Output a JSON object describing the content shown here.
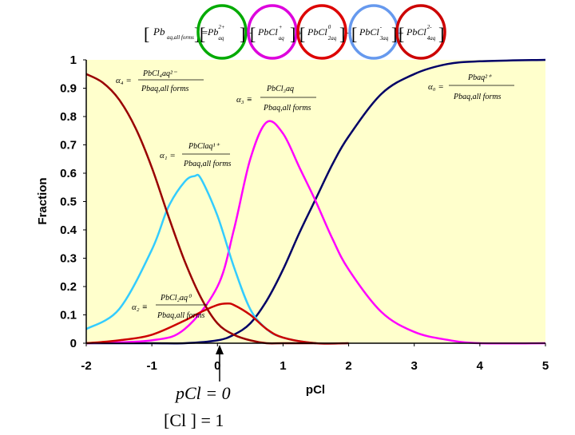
{
  "chart_data": {
    "type": "line",
    "title": "",
    "xlabel": "pCl",
    "ylabel": "Fraction",
    "xlim": [
      -2,
      5
    ],
    "ylim": [
      0,
      1
    ],
    "x_ticks": [
      "-2",
      "-1",
      "0",
      "1",
      "2",
      "3",
      "4",
      "5"
    ],
    "y_ticks": [
      "0",
      "0.1",
      "0.2",
      "0.3",
      "0.4",
      "0.5",
      "0.6",
      "0.7",
      "0.8",
      "0.9",
      "1"
    ],
    "grid": false,
    "background": "#ffffcc",
    "series": [
      {
        "color": "#000066",
        "x": [
          -2,
          -1,
          -0.5,
          0,
          0.25,
          0.5,
          0.75,
          1,
          1.25,
          1.5,
          1.75,
          2,
          2.5,
          3,
          3.5,
          4,
          5
        ],
        "values": [
          0.0,
          0.0,
          0.0,
          0.01,
          0.03,
          0.07,
          0.15,
          0.26,
          0.39,
          0.51,
          0.63,
          0.73,
          0.88,
          0.95,
          0.985,
          0.995,
          1.0
        ]
      },
      {
        "color": "#ff00ff",
        "x": [
          -2,
          -1,
          -0.5,
          0,
          0.25,
          0.5,
          0.75,
          1,
          1.25,
          1.5,
          1.75,
          2,
          2.5,
          3,
          3.5,
          4,
          5
        ],
        "values": [
          0.0,
          0.01,
          0.05,
          0.2,
          0.4,
          0.65,
          0.78,
          0.74,
          0.62,
          0.5,
          0.37,
          0.26,
          0.11,
          0.04,
          0.012,
          0.0,
          0.0
        ]
      },
      {
        "color": "#33ccff",
        "x": [
          -2,
          -1.5,
          -1,
          -0.75,
          -0.5,
          -0.35,
          -0.25,
          0,
          0.25,
          0.5,
          0.75,
          1,
          1.5,
          2
        ],
        "values": [
          0.05,
          0.12,
          0.33,
          0.48,
          0.57,
          0.59,
          0.58,
          0.45,
          0.27,
          0.12,
          0.05,
          0.02,
          0.0,
          0.0
        ]
      },
      {
        "color": "#cc0000",
        "x": [
          -2,
          -1.5,
          -1,
          -0.5,
          -0.25,
          0,
          0.15,
          0.25,
          0.5,
          0.75,
          1,
          1.5,
          2
        ],
        "values": [
          0.0,
          0.01,
          0.03,
          0.08,
          0.11,
          0.135,
          0.14,
          0.135,
          0.1,
          0.05,
          0.02,
          0.0,
          0.0
        ]
      },
      {
        "color": "#990000",
        "x": [
          -2,
          -1.75,
          -1.5,
          -1.25,
          -1,
          -0.75,
          -0.5,
          -0.25,
          0,
          0.25,
          0.5,
          0.75,
          1,
          1.5
        ],
        "values": [
          0.95,
          0.92,
          0.86,
          0.76,
          0.62,
          0.45,
          0.29,
          0.16,
          0.07,
          0.03,
          0.01,
          0.0,
          0.0,
          0.0
        ]
      }
    ]
  },
  "header": {
    "paren_open": "[",
    "paren_close": "]",
    "pb_all": "Pb",
    "pb_all_sub": "aq,all forms",
    "eq": "=",
    "plus": "+",
    "terms": [
      {
        "base": "Pb",
        "sup": "2+",
        "sub": "aq",
        "ring": "#00aa00"
      },
      {
        "base": "PbCl",
        "sup": "+",
        "sub": "aq",
        "ring": "#dd00dd"
      },
      {
        "base": "PbCl",
        "sup": "0",
        "sub": "2aq",
        "ring": "#dd0000"
      },
      {
        "base": "PbCl",
        "sup": "-",
        "sub": "3aq",
        "ring": "#6699ee"
      },
      {
        "base": "PbCl",
        "sup": "2-",
        "sub": "4aq",
        "ring": "#cc0000"
      }
    ]
  },
  "labels": {
    "a4": {
      "sym": "α₄ =",
      "num": "PbCl₄aq²⁻",
      "den": "Pbaq,all forms"
    },
    "a3": {
      "sym": "α₃ ≡",
      "num": "PbCl₃aq",
      "den": "Pbaq,all forms"
    },
    "a1": {
      "sym": "α₁ =",
      "num": "PbClaq¹⁺",
      "den": "Pbaq,all forms"
    },
    "a2": {
      "sym": "α₂ ≡",
      "num": "PbCl₂aq⁰",
      "den": "Pbaq,all forms"
    },
    "a0": {
      "sym": "α₀ =",
      "num": "Pbaq²⁺",
      "den": "Pbaq,all forms"
    }
  },
  "bottom_note": {
    "line1": "pCl = 0",
    "line2": "[Cl  ] = 1"
  }
}
